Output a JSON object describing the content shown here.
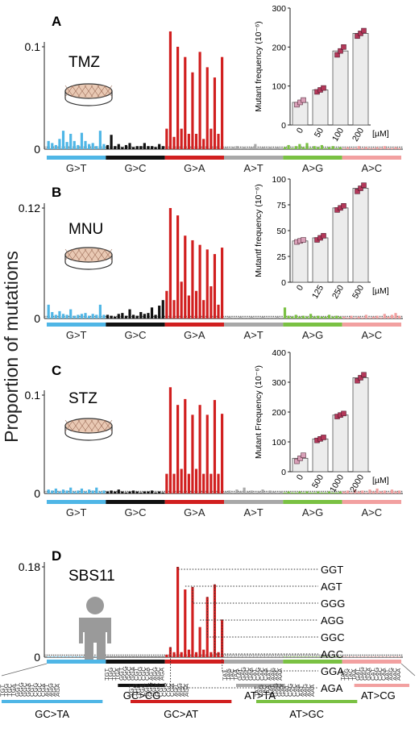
{
  "figure": {
    "ylabel": "Proportion of mutations"
  },
  "colors": {
    "G>T": "#4fb6e6",
    "G>C": "#111111",
    "G>A": "#d11f1f",
    "A>T": "#a8a8a8",
    "A>G": "#7ac143",
    "A>C": "#f2a0a0",
    "marker_low": "#d9a0b8",
    "marker": "#b4385a",
    "inset_bar": "#ececec"
  },
  "mutation_classes": [
    "G>T",
    "G>C",
    "G>A",
    "A>T",
    "A>G",
    "A>C"
  ],
  "panels": [
    {
      "letter": "A",
      "agent": "TMZ",
      "ymax_label": "0.1",
      "zero_label": "0",
      "dish": true,
      "inset": {
        "ylabel": "Mutant frequency (10⁻⁶)",
        "yticks": [
          "0",
          "100",
          "200",
          "300"
        ],
        "categories": [
          "0",
          "50",
          "100",
          "200"
        ],
        "unit": "[µM]"
      }
    },
    {
      "letter": "B",
      "agent": "MNU",
      "ymax_label": "0.12",
      "zero_label": "0",
      "dish": true,
      "inset": {
        "ylabel": "Mutantf frequency (10⁻⁶)",
        "yticks": [
          "0",
          "25",
          "50",
          "75",
          "100"
        ],
        "categories": [
          "0",
          "125",
          "250",
          "500"
        ],
        "unit": "[µM]"
      }
    },
    {
      "letter": "C",
      "agent": "STZ",
      "ymax_label": "0.1",
      "zero_label": "0",
      "dish": true,
      "inset": {
        "ylabel": "Mutant Frequency (10⁻⁶)",
        "yticks": [
          "0",
          "100",
          "200",
          "300",
          "400"
        ],
        "categories": [
          "0",
          "500",
          "1000",
          "2000"
        ],
        "unit": "[µM]"
      }
    },
    {
      "letter": "D",
      "agent": "SBS11",
      "ymax_label": "0.18",
      "zero_label": "0",
      "dish": false,
      "trinuc_callouts": [
        "GGT",
        "AGT",
        "GGG",
        "AGG",
        "GGC",
        "AGC",
        "GGA",
        "AGA"
      ]
    }
  ],
  "legend_bottom": {
    "upper": [
      "GC>CG",
      "AT>TA",
      "AT>CG"
    ],
    "lower": [
      "GC>TA",
      "GC>AT",
      "AT>GC"
    ],
    "g_contexts": [
      "TGT",
      "TGG",
      "TGC",
      "TGA",
      "GGT",
      "GGG",
      "GGC",
      "GGA",
      "CGT",
      "CGG",
      "CGC",
      "CGA",
      "AGT",
      "AGG",
      "AGC",
      "AGA"
    ],
    "a_contexts": [
      "TAT",
      "TAG",
      "TAC",
      "TAA",
      "GAT",
      "GAG",
      "GAC",
      "GAA",
      "CAT",
      "CAG",
      "CAC",
      "CAA",
      "AAT",
      "AAG",
      "AAC",
      "AAA"
    ]
  },
  "chart_data": [
    {
      "type": "bar",
      "title": "TMZ",
      "ylim": [
        0,
        0.13
      ],
      "yticks": [
        0,
        0.1
      ],
      "series": [
        {
          "class": "G>T",
          "values": [
            0.008,
            0.006,
            0.004,
            0.01,
            0.018,
            0.007,
            0.015,
            0.008,
            0.004,
            0.016,
            0.008,
            0.005,
            0.006,
            0.003,
            0.018,
            0.005
          ]
        },
        {
          "class": "G>C",
          "values": [
            0.004,
            0.014,
            0.003,
            0.005,
            0.002,
            0.004,
            0.006,
            0.002,
            0.003,
            0.003,
            0.006,
            0.003,
            0.003,
            0.002,
            0.005,
            0.003
          ]
        },
        {
          "class": "G>A",
          "values": [
            0.02,
            0.115,
            0.012,
            0.1,
            0.02,
            0.09,
            0.015,
            0.075,
            0.015,
            0.095,
            0.01,
            0.08,
            0.02,
            0.07,
            0.015,
            0.09
          ]
        },
        {
          "class": "A>T",
          "values": [
            0.002,
            0.001,
            0.002,
            0.003,
            0.001,
            0.002,
            0.001,
            0.002,
            0.005,
            0.001,
            0.002,
            0.001,
            0.002,
            0.001,
            0.002,
            0.001
          ]
        },
        {
          "class": "A>G",
          "values": [
            0.002,
            0.004,
            0.001,
            0.003,
            0.005,
            0.002,
            0.006,
            0.001,
            0.003,
            0.002,
            0.004,
            0.001,
            0.002,
            0.003,
            0.001,
            0.002
          ]
        },
        {
          "class": "A>C",
          "values": [
            0.001,
            0.002,
            0.001,
            0.001,
            0.003,
            0.001,
            0.002,
            0.001,
            0.001,
            0.002,
            0.001,
            0.003,
            0.001,
            0.001,
            0.002,
            0.001
          ]
        }
      ],
      "inset": {
        "type": "bar",
        "categories": [
          "0",
          "50",
          "100",
          "200"
        ],
        "unit": "µM",
        "ylabel": "Mutant frequency (10⁻⁶)",
        "ylim": [
          0,
          300
        ],
        "values": [
          58,
          90,
          190,
          235
        ],
        "replicates": [
          [
            52,
            58,
            64
          ],
          [
            85,
            90,
            95
          ],
          [
            180,
            190,
            200
          ],
          [
            228,
            235,
            242
          ]
        ]
      }
    },
    {
      "type": "bar",
      "title": "MNU",
      "ylim": [
        0,
        0.135
      ],
      "yticks": [
        0,
        0.12
      ],
      "series": [
        {
          "class": "G>T",
          "values": [
            0.015,
            0.007,
            0.004,
            0.008,
            0.005,
            0.004,
            0.01,
            0.003,
            0.004,
            0.005,
            0.006,
            0.003,
            0.005,
            0.004,
            0.015,
            0.004
          ]
        },
        {
          "class": "G>C",
          "values": [
            0.004,
            0.003,
            0.002,
            0.005,
            0.006,
            0.003,
            0.01,
            0.004,
            0.003,
            0.007,
            0.005,
            0.006,
            0.012,
            0.004,
            0.014,
            0.02
          ]
        },
        {
          "class": "G>A",
          "values": [
            0.03,
            0.12,
            0.02,
            0.112,
            0.04,
            0.09,
            0.025,
            0.085,
            0.03,
            0.08,
            0.02,
            0.075,
            0.035,
            0.07,
            0.015,
            0.077
          ]
        },
        {
          "class": "A>T",
          "values": [
            0.001,
            0.002,
            0.001,
            0.001,
            0.002,
            0.001,
            0.001,
            0.002,
            0.001,
            0.001,
            0.002,
            0.001,
            0.001,
            0.001,
            0.002,
            0.001
          ]
        },
        {
          "class": "A>G",
          "values": [
            0.012,
            0.003,
            0.002,
            0.004,
            0.002,
            0.003,
            0.002,
            0.005,
            0.002,
            0.003,
            0.002,
            0.002,
            0.004,
            0.002,
            0.003,
            0.002
          ]
        },
        {
          "class": "A>C",
          "values": [
            0.002,
            0.001,
            0.003,
            0.001,
            0.002,
            0.001,
            0.004,
            0.001,
            0.002,
            0.003,
            0.001,
            0.005,
            0.002,
            0.004,
            0.006,
            0.003
          ]
        }
      ],
      "inset": {
        "type": "bar",
        "categories": [
          "0",
          "125",
          "250",
          "500"
        ],
        "unit": "µM",
        "ylabel": "Mutantf frequency (10⁻⁶)",
        "ylim": [
          0,
          100
        ],
        "values": [
          40,
          43,
          72,
          91
        ],
        "replicates": [
          [
            39,
            40,
            41
          ],
          [
            41,
            43,
            45
          ],
          [
            70,
            72,
            74
          ],
          [
            88,
            91,
            94
          ]
        ]
      }
    },
    {
      "type": "bar",
      "title": "STZ",
      "ylim": [
        0,
        0.12
      ],
      "yticks": [
        0,
        0.1
      ],
      "series": [
        {
          "class": "G>T",
          "values": [
            0.004,
            0.003,
            0.005,
            0.002,
            0.004,
            0.003,
            0.006,
            0.002,
            0.003,
            0.005,
            0.002,
            0.004,
            0.003,
            0.006,
            0.002,
            0.003
          ]
        },
        {
          "class": "G>C",
          "values": [
            0.002,
            0.003,
            0.002,
            0.004,
            0.002,
            0.001,
            0.002,
            0.003,
            0.002,
            0.001,
            0.002,
            0.002,
            0.003,
            0.001,
            0.002,
            0.001
          ]
        },
        {
          "class": "G>A",
          "values": [
            0.02,
            0.108,
            0.02,
            0.09,
            0.025,
            0.096,
            0.02,
            0.08,
            0.025,
            0.09,
            0.02,
            0.08,
            0.02,
            0.095,
            0.02,
            0.081
          ]
        },
        {
          "class": "A>T",
          "values": [
            0.002,
            0.003,
            0.001,
            0.004,
            0.002,
            0.006,
            0.002,
            0.003,
            0.001,
            0.002,
            0.004,
            0.001,
            0.003,
            0.002,
            0.001,
            0.002
          ]
        },
        {
          "class": "A>G",
          "values": [
            0.001,
            0.002,
            0.001,
            0.001,
            0.002,
            0.001,
            0.002,
            0.001,
            0.001,
            0.002,
            0.001,
            0.001,
            0.002,
            0.001,
            0.001,
            0.002
          ]
        },
        {
          "class": "A>C",
          "values": [
            0.002,
            0.003,
            0.001,
            0.004,
            0.002,
            0.003,
            0.001,
            0.004,
            0.002,
            0.005,
            0.002,
            0.003,
            0.001,
            0.004,
            0.002,
            0.003
          ]
        }
      ],
      "inset": {
        "type": "bar",
        "categories": [
          "0",
          "500",
          "1000",
          "2000"
        ],
        "unit": "µM",
        "ylabel": "Mutant Frequency (10⁻⁶)",
        "ylim": [
          0,
          400
        ],
        "values": [
          45,
          110,
          190,
          315
        ],
        "replicates": [
          [
            35,
            45,
            55
          ],
          [
            105,
            110,
            115
          ],
          [
            185,
            190,
            195
          ],
          [
            305,
            315,
            325
          ]
        ]
      }
    },
    {
      "type": "bar",
      "title": "SBS11",
      "ylim": [
        0,
        0.2
      ],
      "yticks": [
        0,
        0.18
      ],
      "series": [
        {
          "class": "G>T",
          "values": [
            0.001,
            0.001,
            0.001,
            0.001,
            0.001,
            0.001,
            0.001,
            0.001,
            0.001,
            0.001,
            0.001,
            0.001,
            0.001,
            0.001,
            0.001,
            0.001
          ]
        },
        {
          "class": "G>C",
          "values": [
            0.001,
            0.001,
            0.001,
            0.001,
            0.001,
            0.001,
            0.001,
            0.001,
            0.001,
            0.001,
            0.001,
            0.001,
            0.001,
            0.001,
            0.001,
            0.001
          ]
        },
        {
          "class": "G>A",
          "values": [
            0.005,
            0.02,
            0.01,
            0.18,
            0.01,
            0.135,
            0.015,
            0.14,
            0.01,
            0.06,
            0.015,
            0.12,
            0.01,
            0.145,
            0.01,
            0.075
          ]
        },
        {
          "class": "A>T",
          "values": [
            0.001,
            0.001,
            0.001,
            0.001,
            0.001,
            0.001,
            0.001,
            0.001,
            0.001,
            0.001,
            0.001,
            0.001,
            0.001,
            0.001,
            0.001,
            0.001
          ]
        },
        {
          "class": "A>G",
          "values": [
            0.001,
            0.001,
            0.001,
            0.001,
            0.001,
            0.001,
            0.001,
            0.001,
            0.001,
            0.001,
            0.001,
            0.001,
            0.001,
            0.001,
            0.001,
            0.001
          ]
        },
        {
          "class": "A>C",
          "values": [
            0.001,
            0.001,
            0.001,
            0.001,
            0.001,
            0.001,
            0.001,
            0.001,
            0.001,
            0.001,
            0.001,
            0.001,
            0.001,
            0.001,
            0.001,
            0.001
          ]
        }
      ]
    }
  ]
}
